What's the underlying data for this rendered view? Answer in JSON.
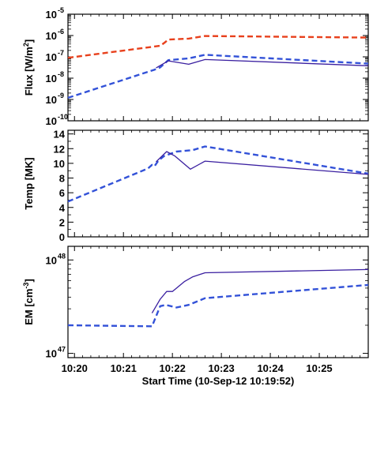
{
  "chart_data": [
    {
      "type": "line",
      "ylabel": "Flux [W/m²]",
      "ylabel_parts": {
        "main": "Flux [W/m",
        "sup": "2",
        "end": "]"
      },
      "y_scale": "log",
      "ylim": [
        1e-10,
        1e-05
      ],
      "yticks": [
        {
          "value": 1e-10,
          "label": "10",
          "exp": "-10"
        },
        {
          "value": 1e-09,
          "label": "10",
          "exp": "-9"
        },
        {
          "value": 1e-08,
          "label": "10",
          "exp": "-8"
        },
        {
          "value": 1e-07,
          "label": "10",
          "exp": "-7"
        },
        {
          "value": 1e-06,
          "label": "10",
          "exp": "-6"
        },
        {
          "value": 1e-05,
          "label": "10",
          "exp": "-5"
        }
      ],
      "series": [
        {
          "color": "#e8401c",
          "style": "dashed",
          "x": [
            "10:19:52",
            "10:21:45",
            "10:21:50",
            "10:21:55",
            "10:22:20",
            "10:22:40",
            "10:26:00"
          ],
          "y": [
            9e-08,
            3.3e-07,
            4.5e-07,
            6.5e-07,
            7.2e-07,
            9.5e-07,
            8e-07
          ]
        },
        {
          "color": "#3352d8",
          "style": "dashed",
          "x": [
            "10:19:52",
            "10:21:38",
            "10:21:45",
            "10:21:55",
            "10:22:20",
            "10:22:40",
            "10:26:00"
          ],
          "y": [
            1.2e-09,
            2.5e-08,
            3.2e-08,
            7e-08,
            8.5e-08,
            1.25e-07,
            4.8e-08
          ]
        },
        {
          "color": "#3a1fa0",
          "style": "solid",
          "x": [
            "10:21:40",
            "10:21:55",
            "10:22:20",
            "10:22:40",
            "10:26:00"
          ],
          "y": [
            3e-08,
            6.5e-08,
            4.5e-08,
            7.5e-08,
            3.8e-08
          ]
        }
      ]
    },
    {
      "type": "line",
      "ylabel": "Temp [MK]",
      "ylim": [
        0,
        14.5
      ],
      "yticks": [
        0,
        2,
        4,
        6,
        8,
        10,
        12,
        14
      ],
      "series": [
        {
          "color": "#3352d8",
          "style": "dashed",
          "x": [
            "10:19:52",
            "10:21:30",
            "10:21:35",
            "10:21:38",
            "10:21:43",
            "10:21:50",
            "10:22:05",
            "10:22:25",
            "10:22:40",
            "10:26:00"
          ],
          "y": [
            4.8,
            9.3,
            9.8,
            9.6,
            10.4,
            11.0,
            11.6,
            11.8,
            12.3,
            8.6
          ]
        },
        {
          "color": "#3a1fa0",
          "style": "solid",
          "x": [
            "10:21:40",
            "10:21:53",
            "10:22:03",
            "10:22:22",
            "10:22:40",
            "10:26:00"
          ],
          "y": [
            10.2,
            11.6,
            11.0,
            9.2,
            10.3,
            8.5
          ]
        }
      ]
    },
    {
      "type": "line",
      "ylabel": "EM [cm⁻³]",
      "ylabel_parts": {
        "main": "EM [cm",
        "sup": "-3",
        "end": "]"
      },
      "y_scale": "log",
      "ylim": [
        9e+46,
        1.4e+48
      ],
      "yticks": [
        {
          "value": 1e+47,
          "label": "10",
          "exp": "47"
        },
        {
          "value": 1e+48,
          "label": "10",
          "exp": "48"
        }
      ],
      "xlabel": "Start Time (10-Sep-12 10:19:52)",
      "xticks": [
        "10:20",
        "10:21",
        "10:22",
        "10:23",
        "10:24",
        "10:25"
      ],
      "xlim": [
        "10:19:52",
        "10:26:00"
      ],
      "series": [
        {
          "color": "#3352d8",
          "style": "dashed",
          "x": [
            "10:19:52",
            "10:21:35",
            "10:21:45",
            "10:21:52",
            "10:22:05",
            "10:22:20",
            "10:22:40",
            "10:26:00"
          ],
          "y": [
            2e+47,
            1.95e+47,
            3.2e+47,
            3.3e+47,
            3.1e+47,
            3.3e+47,
            3.9e+47,
            5.4e+47
          ]
        },
        {
          "color": "#3a1fa0",
          "style": "solid",
          "x": [
            "10:21:35",
            "10:21:45",
            "10:21:53",
            "10:22:00",
            "10:22:15",
            "10:22:25",
            "10:22:40",
            "10:26:00"
          ],
          "y": [
            2.7e+47,
            3.8e+47,
            4.6e+47,
            4.6e+47,
            5.9e+47,
            6.6e+47,
            7.3e+47,
            7.9e+47
          ]
        }
      ]
    }
  ]
}
